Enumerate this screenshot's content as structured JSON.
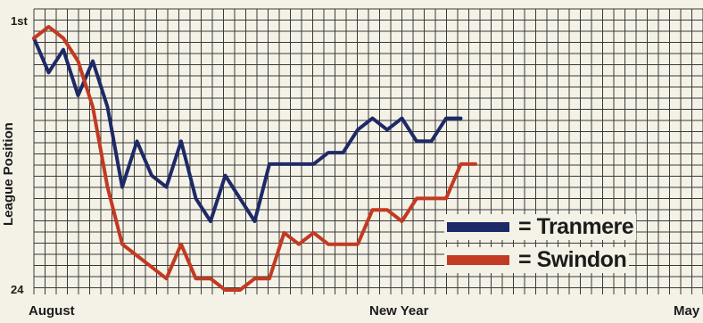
{
  "chart_data": {
    "type": "line",
    "title": "",
    "xlabel": "",
    "ylabel": "League Position",
    "ylim": [
      24,
      1
    ],
    "y_ticks": [
      "1st",
      "24"
    ],
    "x_ticks": [
      "August",
      "New Year",
      "May"
    ],
    "grid": true,
    "legend_placement": "bottom-right",
    "legend_prefix": "=",
    "series": [
      {
        "name": "Tranmere",
        "color": "#1e2a66",
        "values": [
          2,
          5,
          3,
          7,
          4,
          8,
          15,
          11,
          14,
          15,
          11,
          16,
          18,
          14,
          16,
          18,
          13,
          13,
          13,
          13,
          12,
          12,
          10,
          9,
          10,
          9,
          11,
          11,
          9,
          9
        ]
      },
      {
        "name": "Swindon",
        "color": "#c23a22",
        "values": [
          2,
          1,
          2,
          4,
          8,
          15,
          20,
          21,
          22,
          23,
          20,
          23,
          23,
          24,
          24,
          23,
          23,
          19,
          20,
          19,
          20,
          20,
          20,
          17,
          17,
          18,
          16,
          16,
          16,
          13,
          13
        ]
      }
    ]
  }
}
